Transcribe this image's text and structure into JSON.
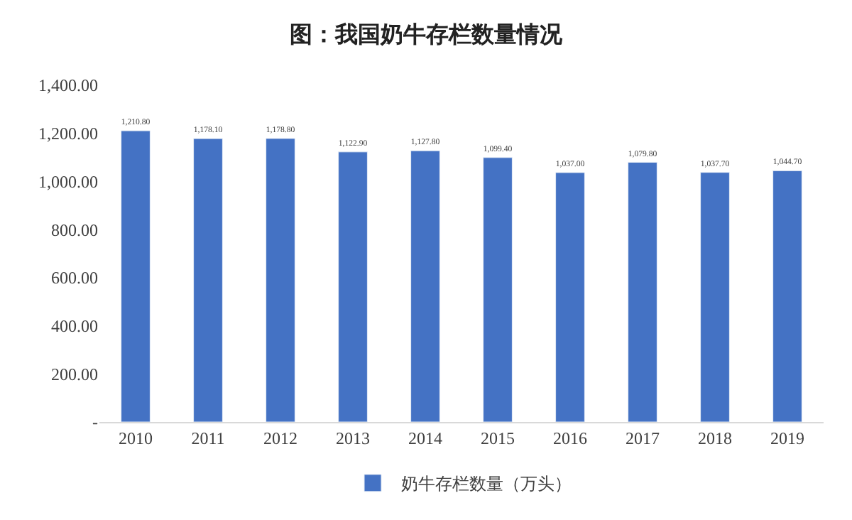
{
  "chart_data": {
    "type": "bar",
    "title": "图：我国奶牛存栏数量情况",
    "categories": [
      "2010",
      "2011",
      "2012",
      "2013",
      "2014",
      "2015",
      "2016",
      "2017",
      "2018",
      "2019"
    ],
    "series": [
      {
        "name": "奶牛存栏数量（万头）",
        "color": "#4472c4",
        "values": [
          1210.8,
          1178.1,
          1178.8,
          1122.9,
          1127.8,
          1099.4,
          1037.0,
          1079.8,
          1037.7,
          1044.7
        ],
        "value_labels": [
          "1,210.80",
          "1,178.10",
          "1,178.80",
          "1,122.90",
          "1,127.80",
          "1,099.40",
          "1,037.00",
          "1,079.80",
          "1,037.70",
          "1,044.70"
        ]
      }
    ],
    "ylim": [
      0,
      1400
    ],
    "yticks": [
      {
        "value": 0,
        "label": "-"
      },
      {
        "value": 200,
        "label": "200.00"
      },
      {
        "value": 400,
        "label": "400.00"
      },
      {
        "value": 600,
        "label": "600.00"
      },
      {
        "value": 800,
        "label": "800.00"
      },
      {
        "value": 1000,
        "label": "1,000.00"
      },
      {
        "value": 1200,
        "label": "1,200.00"
      },
      {
        "value": 1400,
        "label": "1,400.00"
      }
    ],
    "legend": "bottom"
  }
}
